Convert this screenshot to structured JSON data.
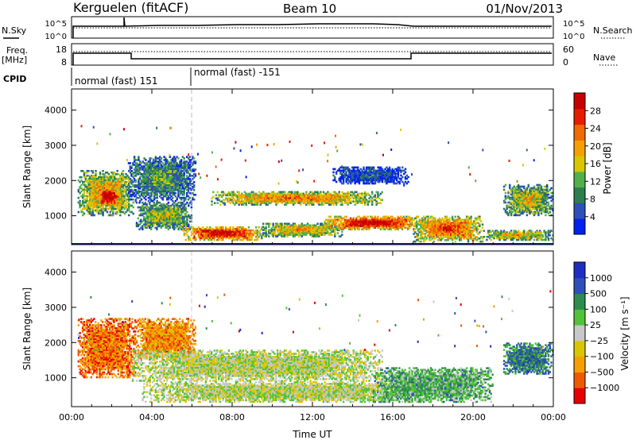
{
  "header": {
    "station": "Kerguelen (fitACF)",
    "beam": "Beam 10",
    "date": "01/Nov/2013"
  },
  "status_panel": {
    "nsky_label": "N.Sky",
    "nsearch_label": "N.Search",
    "noise_ticks": [
      "10^5",
      "10^0"
    ],
    "freq_label_1": "Freq.",
    "freq_label_2": "[MHz]",
    "freq_ticks": [
      "18",
      "8"
    ],
    "nave_label": "Nave",
    "nave_ticks": [
      "60",
      "0"
    ],
    "cpid_label": "CPID",
    "cpid_1": "normal (fast) 151",
    "cpid_2": "normal (fast) -151"
  },
  "colors": {
    "power": [
      "#0022ee",
      "#2c4fb8",
      "#2e7d4f",
      "#52b04a",
      "#d9c600",
      "#f5a000",
      "#ef6a00",
      "#e81c00",
      "#c80000"
    ],
    "velocity": [
      "#e80000",
      "#ef5a00",
      "#f5a000",
      "#d9c600",
      "#c8c8c8",
      "#52c23a",
      "#2e8c4f",
      "#2c4fb8",
      "#1e2cc4"
    ]
  },
  "chart_data": [
    {
      "type": "heatmap",
      "title": "",
      "quantity": "Power",
      "xlabel": "Time UT",
      "ylabel": "Slant Range [km]",
      "xlim": [
        0,
        24
      ],
      "ylim": [
        180,
        4600
      ],
      "x_ticks": [
        "00:00",
        "04:00",
        "08:00",
        "12:00",
        "16:00",
        "20:00",
        "00:00"
      ],
      "y_ticks": [
        "1000",
        "2000",
        "3000",
        "4000"
      ],
      "colorbar_label": "Power [dB]",
      "colorbar_ticks": [
        "4",
        "8",
        "12",
        "16",
        "20",
        "24",
        "28"
      ],
      "bands": [
        {
          "t0": 0.3,
          "t1": 3.1,
          "r0": 1000,
          "r1": 2300,
          "level": 0.55
        },
        {
          "t0": 1.3,
          "t1": 2.4,
          "r0": 1300,
          "r1": 1800,
          "level": 0.95
        },
        {
          "t0": 2.8,
          "t1": 6.2,
          "r0": 1400,
          "r1": 2700,
          "level": 0.3
        },
        {
          "t0": 3.2,
          "t1": 6.0,
          "r0": 600,
          "r1": 1400,
          "level": 0.4
        },
        {
          "t0": 5.5,
          "t1": 9.5,
          "r0": 300,
          "r1": 700,
          "level": 0.85
        },
        {
          "t0": 9.5,
          "t1": 13.5,
          "r0": 400,
          "r1": 800,
          "level": 0.55
        },
        {
          "t0": 6.8,
          "t1": 15.5,
          "r0": 1300,
          "r1": 1700,
          "level": 0.6
        },
        {
          "t0": 12.5,
          "t1": 17.5,
          "r0": 600,
          "r1": 1000,
          "level": 0.85
        },
        {
          "t0": 13.0,
          "t1": 16.8,
          "r0": 1900,
          "r1": 2400,
          "level": 0.15
        },
        {
          "t0": 17.0,
          "t1": 20.5,
          "r0": 250,
          "r1": 1000,
          "level": 0.7
        },
        {
          "t0": 20.5,
          "t1": 24.0,
          "r0": 300,
          "r1": 600,
          "level": 0.5
        },
        {
          "t0": 21.5,
          "t1": 24.0,
          "r0": 1000,
          "r1": 1900,
          "level": 0.45
        }
      ]
    },
    {
      "type": "heatmap",
      "title": "",
      "quantity": "Velocity",
      "xlabel": "Time UT",
      "ylabel": "Slant Range [km]",
      "xlim": [
        0,
        24
      ],
      "ylim": [
        180,
        4600
      ],
      "x_ticks": [
        "00:00",
        "04:00",
        "08:00",
        "12:00",
        "16:00",
        "20:00",
        "00:00"
      ],
      "y_ticks": [
        "1000",
        "2000",
        "3000",
        "4000"
      ],
      "colorbar_label": "Velocity [m s⁻¹]",
      "colorbar_ticks": [
        "1000",
        "500",
        "100",
        "25",
        "−25",
        "−100",
        "−500",
        "−1000"
      ],
      "bands": [
        {
          "t0": 0.3,
          "t1": 3.2,
          "r0": 1000,
          "r1": 2700,
          "level": 0.2
        },
        {
          "t0": 3.2,
          "t1": 6.2,
          "r0": 1500,
          "r1": 2700,
          "level": 0.25
        },
        {
          "t0": 3.0,
          "t1": 15.5,
          "r0": 900,
          "r1": 1800,
          "level": 0.5
        },
        {
          "t0": 3.5,
          "t1": 17.5,
          "r0": 300,
          "r1": 900,
          "level": 0.5
        },
        {
          "t0": 15.0,
          "t1": 21.0,
          "r0": 300,
          "r1": 1300,
          "level": 0.65
        },
        {
          "t0": 21.5,
          "t1": 24.0,
          "r0": 1100,
          "r1": 2000,
          "level": 0.75
        }
      ]
    }
  ]
}
